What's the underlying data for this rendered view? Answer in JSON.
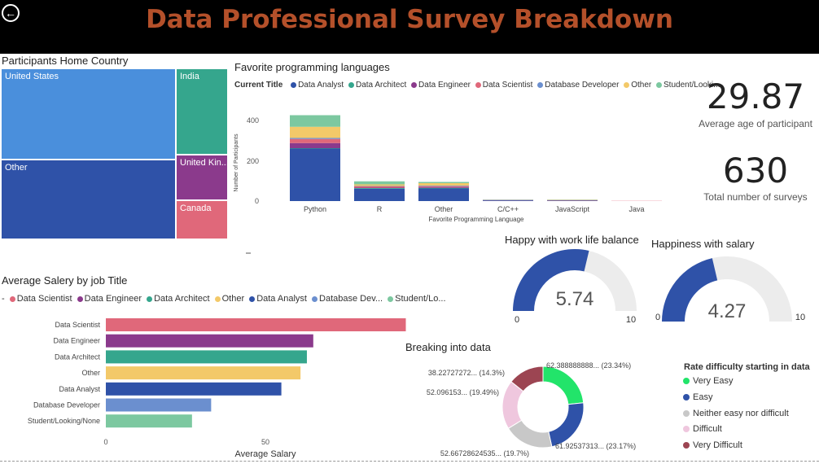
{
  "header": {
    "title": "Data Professional Survey Breakdown"
  },
  "colors": {
    "data_analyst": "#2f52a8",
    "data_architect": "#35a68d",
    "data_engineer": "#8b3a8c",
    "data_scientist": "#e0687a",
    "database_developer": "#6b8fcf",
    "other": "#f3c969",
    "student": "#7cc8a0"
  },
  "treemap": {
    "title": "Participants Home Country",
    "items": [
      {
        "label": "United States",
        "color": "#4a8fdc"
      },
      {
        "label": "Other",
        "color": "#2f52a8"
      },
      {
        "label": "India",
        "color": "#35a68d"
      },
      {
        "label": "United Kin...",
        "color": "#8b3a8c"
      },
      {
        "label": "Canada",
        "color": "#e0687a"
      }
    ]
  },
  "languages": {
    "title": "Favorite programming languages",
    "legend_title": "Current Title",
    "legend": [
      {
        "name": "Data Analyst",
        "color": "#2f52a8"
      },
      {
        "name": "Data Architect",
        "color": "#35a68d"
      },
      {
        "name": "Data Engineer",
        "color": "#8b3a8c"
      },
      {
        "name": "Data Scientist",
        "color": "#e0687a"
      },
      {
        "name": "Database Developer",
        "color": "#6b8fcf"
      },
      {
        "name": "Other",
        "color": "#f3c969"
      },
      {
        "name": "Student/Looki...",
        "color": "#7cc8a0"
      }
    ],
    "xlabel": "Favorite Programming Language",
    "ylabel": "Number of Participants",
    "ticks": [
      "0",
      "200",
      "400"
    ]
  },
  "kpis": {
    "age_value": "29.87",
    "age_label": "Average age of participant",
    "count_value": "630",
    "count_label": "Total number of surveys"
  },
  "salary": {
    "title": "Average Salery by job Title",
    "legend": [
      {
        "name": "Data Scientist",
        "color": "#e0687a"
      },
      {
        "name": "Data Engineer",
        "color": "#8b3a8c"
      },
      {
        "name": "Data Architect",
        "color": "#35a68d"
      },
      {
        "name": "Other",
        "color": "#f3c969"
      },
      {
        "name": "Data Analyst",
        "color": "#2f52a8"
      },
      {
        "name": "Database Dev...",
        "color": "#6b8fcf"
      },
      {
        "name": "Student/Lo...",
        "color": "#7cc8a0"
      }
    ],
    "xlabel": "Average Salary",
    "ticks": [
      "0",
      "50"
    ]
  },
  "gauges": [
    {
      "title": "Happy with work life balance",
      "value": "5.74",
      "min": "0",
      "max": "10"
    },
    {
      "title": "Happiness with salary",
      "value": "4.27",
      "min": "0",
      "max": "10"
    }
  ],
  "donut": {
    "title": "Breaking into data",
    "labels": [
      "62.388888888... (23.34%)",
      "61.92537313... (23.17%)",
      "52.66728624535... (19.7%)",
      "52.096153... (19.49%)",
      "38.22727272... (14.3%)"
    ]
  },
  "difficulty_legend": {
    "title": "Rate difficulty starting in data",
    "items": [
      {
        "name": "Very Easy",
        "color": "#22e46a"
      },
      {
        "name": "Easy",
        "color": "#2f52a8"
      },
      {
        "name": "Neither easy nor difficult",
        "color": "#c8c8c8"
      },
      {
        "name": "Difficult",
        "color": "#efc7de"
      },
      {
        "name": "Very Difficult",
        "color": "#9c4552"
      }
    ]
  },
  "chart_data": [
    {
      "type": "bar",
      "stacked": true,
      "categories": [
        "Python",
        "R",
        "Other",
        "C/C++",
        "JavaScript",
        "Java"
      ],
      "series": [
        {
          "name": "Data Analyst",
          "values": [
            258,
            61,
            62,
            3,
            2,
            0
          ]
        },
        {
          "name": "Data Architect",
          "values": [
            2,
            3,
            3,
            0,
            0,
            0
          ]
        },
        {
          "name": "Data Engineer",
          "values": [
            25,
            2,
            3,
            1,
            1,
            0
          ]
        },
        {
          "name": "Data Scientist",
          "values": [
            20,
            6,
            5,
            1,
            1,
            1
          ]
        },
        {
          "name": "Database Developer",
          "values": [
            5,
            2,
            3,
            1,
            1,
            0
          ]
        },
        {
          "name": "Other",
          "values": [
            55,
            8,
            12,
            1,
            2,
            0
          ]
        },
        {
          "name": "Student/Looki...",
          "values": [
            57,
            15,
            6,
            1,
            1,
            0
          ]
        }
      ],
      "ylim": [
        0,
        420
      ]
    },
    {
      "type": "bar",
      "orientation": "horizontal",
      "categories": [
        "Data Scientist",
        "Data Engineer",
        "Data Architect",
        "Other",
        "Data Analyst",
        "Database Developer",
        "Student/Looking/None"
      ],
      "values": [
        94,
        65,
        63,
        61,
        55,
        33,
        27
      ],
      "xlim": [
        0,
        100
      ]
    }
  ],
  "gauge_data": [
    {
      "value": 5.74,
      "min": 0,
      "max": 10
    },
    {
      "value": 4.27,
      "min": 0,
      "max": 10
    }
  ],
  "donut_data": [
    {
      "name": "Very Easy",
      "value": 62.39,
      "percent": 23.34
    },
    {
      "name": "Easy",
      "value": 61.93,
      "percent": 23.17
    },
    {
      "name": "Neither easy nor difficult",
      "value": 52.67,
      "percent": 19.7
    },
    {
      "name": "Difficult",
      "value": 52.1,
      "percent": 19.49
    },
    {
      "name": "Very Difficult",
      "value": 38.23,
      "percent": 14.3
    }
  ]
}
